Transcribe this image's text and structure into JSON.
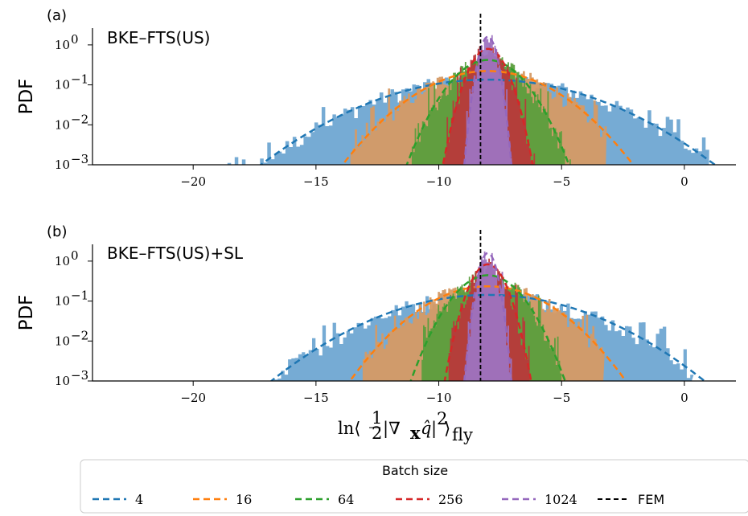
{
  "chart_data": {
    "type": "area",
    "xlim": [
      -24.1,
      2.1
    ],
    "ylog": true,
    "ylim_exponents": [
      -3,
      0.42
    ],
    "xticks": [
      -20,
      -15,
      -10,
      -5,
      0
    ],
    "xtick_labels": [
      "−20",
      "−15",
      "−10",
      "−5",
      "0"
    ],
    "ytick_exponents": [
      -3,
      -2,
      -1,
      0
    ],
    "ytick_labels": [
      "10",
      "10",
      "10",
      "10"
    ],
    "ytick_sup": [
      "−3",
      "−2",
      "−1",
      "0"
    ],
    "ylabel": "PDF",
    "xlabel": {
      "pre": "ln⟨",
      "frac_num": "1",
      "frac_den": "2",
      "mid": "|∇",
      "sub_x": "x",
      "qhat": "q̂",
      "post": "|",
      "sq": "2",
      "close": "⟩",
      "sub_fly": "fly"
    },
    "fem_x": -8.3,
    "series": [
      {
        "name": "4",
        "color": "#1f77b4",
        "fill": "#6fa6d2",
        "mean": -8.0,
        "sd": 2.95
      },
      {
        "name": "16",
        "color": "#ff7f0e",
        "fill": "#d59a65",
        "mean": -8.0,
        "sd": 1.8
      },
      {
        "name": "64",
        "color": "#2ca02c",
        "fill": "#5b9e3d",
        "mean": -8.0,
        "sd": 0.95
      },
      {
        "name": "256",
        "color": "#d62728",
        "fill": "#b8393a",
        "mean": -8.0,
        "sd": 0.5
      },
      {
        "name": "1024",
        "color": "#9467bd",
        "fill": "#9e73c0",
        "mean": -8.0,
        "sd": 0.25
      }
    ],
    "panels": [
      {
        "letter": "(a)",
        "title": "BKE–FTS(US)",
        "sds": [
          2.95,
          1.8,
          0.95,
          0.5,
          0.25
        ],
        "hist_min": [
          -18.9,
          -13.6,
          -11.1,
          -9.8,
          -9.0
        ],
        "hist_max": [
          1.0,
          -3.2,
          -4.4,
          -6.0,
          -6.8
        ]
      },
      {
        "letter": "(b)",
        "title": "BKE–FTS(US)+SL",
        "sds": [
          2.8,
          1.7,
          0.9,
          0.48,
          0.25
        ],
        "hist_min": [
          -16.7,
          -13.1,
          -10.7,
          -9.6,
          -9.0
        ],
        "hist_max": [
          0.3,
          -3.3,
          -5.0,
          -6.3,
          -6.9
        ]
      }
    ]
  },
  "legend": {
    "title": "Batch size",
    "fem_label": "FEM",
    "fem_color": "#000000"
  }
}
